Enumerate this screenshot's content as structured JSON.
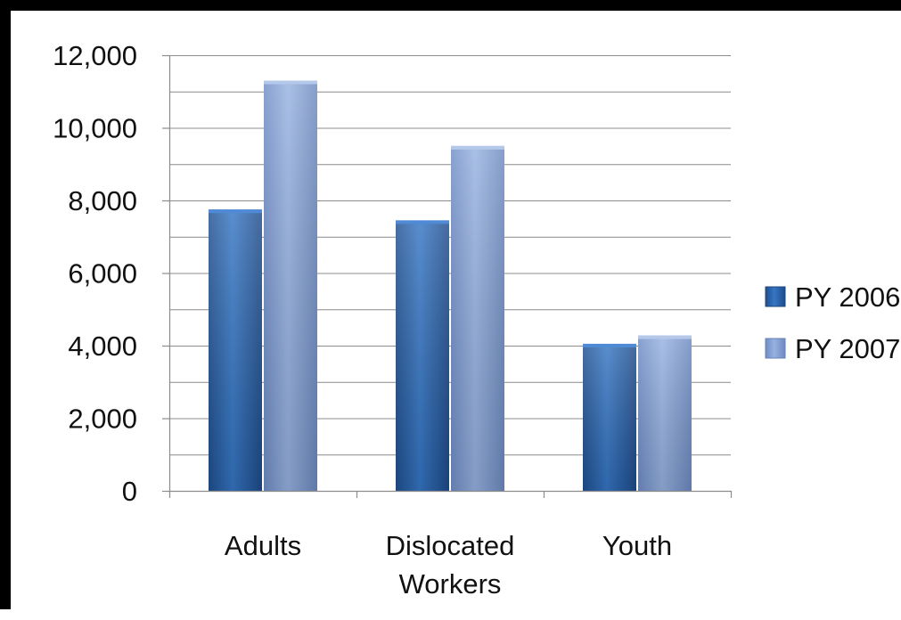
{
  "chart_data": {
    "type": "bar",
    "title": "",
    "xlabel": "",
    "ylabel": "",
    "categories": [
      "Adults",
      "Dislocated Workers",
      "Youth"
    ],
    "category_lines": [
      [
        "Adults"
      ],
      [
        "Dislocated",
        "Workers"
      ],
      [
        "Youth"
      ]
    ],
    "series": [
      {
        "name": "PY 2006",
        "values": [
          7750,
          7450,
          4050
        ],
        "color": "#2f6db8"
      },
      {
        "name": "PY 2007",
        "values": [
          11300,
          9500,
          4280
        ],
        "color": "#8ea9d8"
      }
    ],
    "ylim": [
      0,
      12000
    ],
    "y_ticks": [
      0,
      2000,
      4000,
      6000,
      8000,
      10000,
      12000
    ],
    "y_tick_labels": [
      "0",
      "2,000",
      "4,000",
      "6,000",
      "8,000",
      "10,000",
      "12,000"
    ],
    "minor_grid_step": 1000,
    "grid": true,
    "legend_position": "right"
  }
}
